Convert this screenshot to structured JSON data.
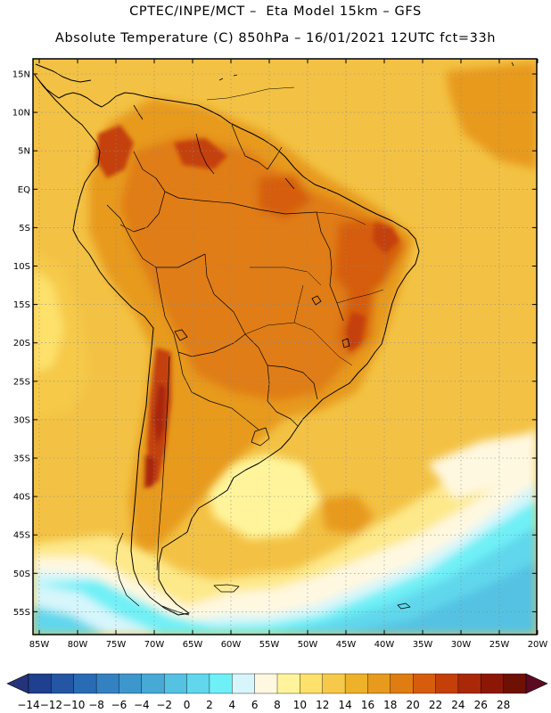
{
  "header": {
    "line1": "CPTEC/INPE/MCT –  Eta Model 15km – GFS",
    "line2": "Absolute Temperature (C) 850hPa – 16/01/2021 12UTC fct=33h"
  },
  "axes": {
    "lat_labels": [
      "15N",
      "10N",
      "5N",
      "EQ",
      "5S",
      "10S",
      "15S",
      "20S",
      "25S",
      "30S",
      "35S",
      "40S",
      "45S",
      "50S",
      "55S"
    ],
    "lon_labels": [
      "85W",
      "80W",
      "75W",
      "70W",
      "65W",
      "60W",
      "55W",
      "50W",
      "45W",
      "40W",
      "35W",
      "30W",
      "25W",
      "20W"
    ]
  },
  "colorbar": {
    "labels": [
      "−14",
      "−12",
      "−10",
      "−8",
      "−6",
      "−4",
      "−2",
      "0",
      "2",
      "4",
      "6",
      "8",
      "10",
      "12",
      "14",
      "16",
      "18",
      "20",
      "22",
      "24",
      "26",
      "28"
    ],
    "colors": [
      "#1f3f8f",
      "#2456a3",
      "#2a6bb5",
      "#3481c2",
      "#3d97cc",
      "#47aad6",
      "#55c2e3",
      "#60d7ec",
      "#6ff0f6",
      "#d6f6fb",
      "#fff8e0",
      "#fff49b",
      "#fde16a",
      "#f6c94a",
      "#eeb12a",
      "#e79a1d",
      "#e07d12",
      "#d55d0c",
      "#c43f0a",
      "#a92808",
      "#8d1706",
      "#6f1005"
    ],
    "under_color": "#25337a",
    "over_color": "#5c0a22"
  }
}
